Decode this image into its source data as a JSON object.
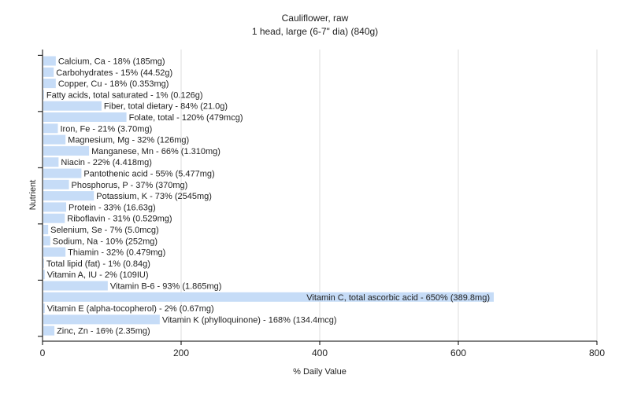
{
  "chart_data": {
    "type": "bar",
    "orientation": "horizontal",
    "title": "Cauliflower, raw",
    "subtitle": "1 head, large (6-7\" dia) (840g)",
    "xlabel": "% Daily Value",
    "ylabel": "Nutrient",
    "xlim": [
      0,
      800
    ],
    "xticks": [
      0,
      200,
      400,
      600,
      800
    ],
    "grid": true,
    "colors": {
      "bar": "#c6dcf7",
      "grid": "#dddddd",
      "axis": "#000000",
      "text": "#222222"
    },
    "categories": [
      "Calcium, Ca",
      "Carbohydrates",
      "Copper, Cu",
      "Fatty acids, total saturated",
      "Fiber, total dietary",
      "Folate, total",
      "Iron, Fe",
      "Magnesium, Mg",
      "Manganese, Mn",
      "Niacin",
      "Pantothenic acid",
      "Phosphorus, P",
      "Potassium, K",
      "Protein",
      "Riboflavin",
      "Selenium, Se",
      "Sodium, Na",
      "Thiamin",
      "Total lipid (fat)",
      "Vitamin A, IU",
      "Vitamin B-6",
      "Vitamin C, total ascorbic acid",
      "Vitamin E (alpha-tocopherol)",
      "Vitamin K (phylloquinone)",
      "Zinc, Zn"
    ],
    "values": [
      18,
      15,
      18,
      1,
      84,
      120,
      21,
      32,
      66,
      22,
      55,
      37,
      73,
      33,
      31,
      7,
      10,
      32,
      1,
      2,
      93,
      650,
      2,
      168,
      16
    ],
    "labels": [
      "Calcium, Ca - 18% (185mg)",
      "Carbohydrates - 15% (44.52g)",
      "Copper, Cu - 18% (0.353mg)",
      "Fatty acids, total saturated - 1% (0.126g)",
      "Fiber, total dietary - 84% (21.0g)",
      "Folate, total - 120% (479mcg)",
      "Iron, Fe - 21% (3.70mg)",
      "Magnesium, Mg - 32% (126mg)",
      "Manganese, Mn - 66% (1.310mg)",
      "Niacin - 22% (4.418mg)",
      "Pantothenic acid - 55% (5.477mg)",
      "Phosphorus, P - 37% (370mg)",
      "Potassium, K - 73% (2545mg)",
      "Protein - 33% (16.63g)",
      "Riboflavin - 31% (0.529mg)",
      "Selenium, Se - 7% (5.0mcg)",
      "Sodium, Na - 10% (252mg)",
      "Thiamin - 32% (0.479mg)",
      "Total lipid (fat) - 1% (0.84g)",
      "Vitamin A, IU - 2% (109IU)",
      "Vitamin B-6 - 93% (1.865mg)",
      "Vitamin C, total ascorbic acid - 650% (389.8mg)",
      "Vitamin E (alpha-tocopherol) - 2% (0.67mg)",
      "Vitamin K (phylloquinone) - 168% (134.4mcg)",
      "Zinc, Zn - 16% (2.35mg)"
    ]
  }
}
